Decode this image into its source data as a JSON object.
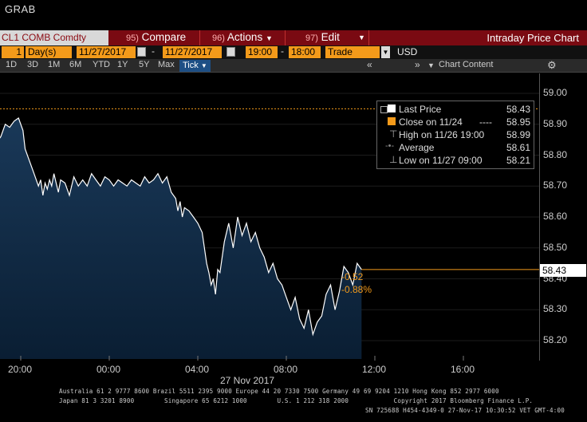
{
  "header": {
    "title": "GRAB"
  },
  "menubar": {
    "ticker": "CL1 COMB Comdty",
    "compare_num": "95)",
    "compare_label": "Compare",
    "actions_num": "96)",
    "actions_label": "Actions",
    "edit_num": "97)",
    "edit_label": "Edit",
    "right_title": "Intraday Price Chart"
  },
  "datebar": {
    "range_value": "1",
    "range_unit": "Day(s)",
    "start_date": "11/27/2017",
    "end_date": "11/27/2017",
    "start_time": "19:00",
    "end_time": "18:00",
    "field": "Trade",
    "currency": "USD"
  },
  "periods": [
    "1D",
    "3D",
    "1M",
    "6M",
    "YTD",
    "1Y",
    "5Y",
    "Max"
  ],
  "tick_label": "Tick",
  "nav": {
    "prev": "«",
    "next": "»",
    "chart_content": "Chart Content",
    "settings_icon": "gear-icon"
  },
  "legend": {
    "rows": [
      {
        "label": "Last Price",
        "value": "58.43"
      },
      {
        "label": "Close on 11/24",
        "value": "58.95"
      },
      {
        "label": "High on 11/26 19:00",
        "value": "58.99"
      },
      {
        "label": "Average",
        "value": "58.61"
      },
      {
        "label": "Low on 11/27 09:00",
        "value": "58.21"
      }
    ]
  },
  "colors": {
    "accent": "#f39a1a",
    "menubar": "#7a0a12",
    "area_top": "#16324d",
    "line": "#ffffff"
  },
  "change": {
    "abs": "-0.52",
    "pct": "-0.88%"
  },
  "last_price_tag": "58.43",
  "chart_data": {
    "type": "area",
    "ylim": [
      58.15,
      59.03
    ],
    "yticks": [
      "59.00",
      "58.90",
      "58.80",
      "58.70",
      "58.60",
      "58.50",
      "58.40",
      "58.30",
      "58.20"
    ],
    "ytick_values": [
      59.0,
      58.9,
      58.8,
      58.7,
      58.6,
      58.5,
      58.4,
      58.3,
      58.2
    ],
    "xticks": [
      "20:00",
      "00:00",
      "04:00",
      "08:00",
      "12:00",
      "16:00"
    ],
    "xtick_hours": [
      20,
      24,
      28,
      32,
      36,
      40
    ],
    "xlim_hours": [
      18.0,
      42.0
    ],
    "date_label": "27 Nov 2017",
    "reference_line": 58.95,
    "last_price": 58.43,
    "series": [
      {
        "hours": [
          18.0,
          18.1,
          18.2,
          18.3,
          18.5,
          18.7,
          18.9,
          19.1,
          19.3,
          19.5,
          19.7,
          19.9,
          20.1,
          20.2,
          20.4,
          20.6,
          20.8,
          20.9,
          21.0,
          21.1,
          21.2,
          21.3,
          21.4,
          21.5,
          21.7,
          21.8,
          22.0,
          22.2,
          22.4,
          22.6,
          22.8,
          23.0,
          23.2,
          23.4,
          23.6,
          23.8,
          24.0,
          24.2,
          24.4,
          24.6,
          24.8,
          25.0,
          25.2,
          25.4,
          25.6,
          25.8,
          26.0,
          26.2,
          26.4,
          26.6,
          26.8,
          27.0,
          27.1,
          27.2,
          27.3,
          27.4,
          27.6,
          27.8,
          28.0,
          28.2,
          28.3,
          28.4,
          28.5,
          28.6,
          28.7,
          28.8,
          28.9,
          29.0,
          29.2,
          29.4,
          29.6,
          29.8,
          30.0,
          30.2,
          30.4,
          30.6,
          30.8,
          31.0,
          31.2,
          31.4,
          31.6,
          31.8,
          32.0,
          32.2,
          32.4,
          32.6,
          32.8,
          33.0,
          33.2,
          33.4,
          33.6,
          33.8,
          34.0,
          34.2,
          34.4,
          34.6,
          34.8,
          35.0,
          35.2,
          35.4
        ],
        "values": [
          59.0,
          58.92,
          58.9,
          58.88,
          58.85,
          58.87,
          58.84,
          58.86,
          58.9,
          58.89,
          58.91,
          58.92,
          58.88,
          58.82,
          58.78,
          58.74,
          58.7,
          58.72,
          58.67,
          58.71,
          58.69,
          58.72,
          58.7,
          58.74,
          58.68,
          58.72,
          58.71,
          58.67,
          58.73,
          58.7,
          58.72,
          58.7,
          58.74,
          58.72,
          58.7,
          58.73,
          58.72,
          58.7,
          58.72,
          58.71,
          58.7,
          58.72,
          58.71,
          58.7,
          58.73,
          58.71,
          58.72,
          58.74,
          58.71,
          58.73,
          58.68,
          58.66,
          58.62,
          58.65,
          58.6,
          58.63,
          58.62,
          58.6,
          58.58,
          58.55,
          58.5,
          58.45,
          58.42,
          58.38,
          58.4,
          58.35,
          58.43,
          58.42,
          58.52,
          58.58,
          58.5,
          58.6,
          58.54,
          58.58,
          58.52,
          58.55,
          58.5,
          58.47,
          58.42,
          58.45,
          58.4,
          58.38,
          58.34,
          58.3,
          58.34,
          58.27,
          58.24,
          58.3,
          58.22,
          58.26,
          58.28,
          58.35,
          58.38,
          58.3,
          58.36,
          58.44,
          58.42,
          58.38,
          58.45,
          58.43
        ]
      }
    ]
  },
  "footer": {
    "line1": "Australia 61 2 9777 8600 Brazil 5511 2395 9000 Europe 44 20 7330 7500 Germany 49 69 9204 1210 Hong Kong 852 2977 6000",
    "line2": "Japan 81 3 3201 8900        Singapore 65 6212 1000        U.S. 1 212 318 2000            Copyright 2017 Bloomberg Finance L.P.",
    "line3": "SN 725688 H454-4349-0 27-Nov-17 10:30:52 VET  GMT-4:00"
  }
}
